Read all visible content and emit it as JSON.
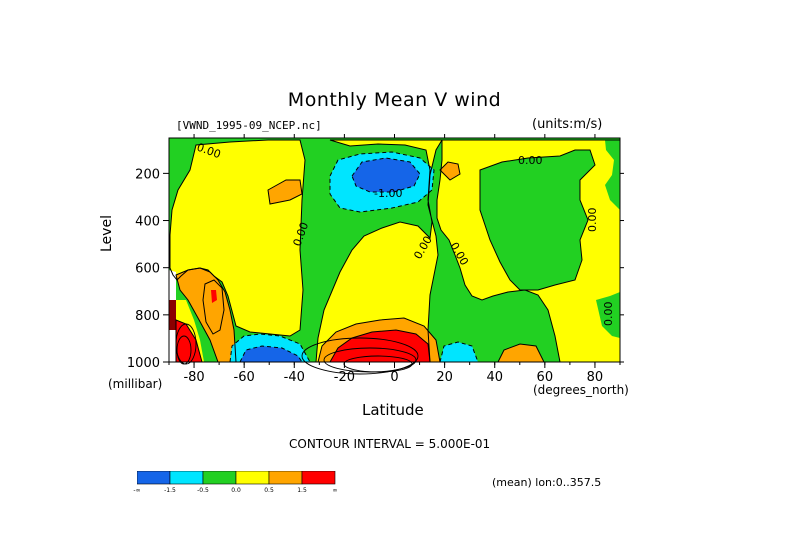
{
  "figure": {
    "title": "Monthly Mean V wind",
    "file_label": "[VWND_1995-09_NCEP.nc]",
    "units_label": "(units:m/s)",
    "y_axis_label": "Level",
    "y_axis_unit": "(millibar)",
    "x_axis_label": "Latitude",
    "x_axis_unit": "(degrees_north)",
    "contour_interval": "CONTOUR INTERVAL = 5.000E-01",
    "mean_label": "(mean) lon:0..357.5"
  },
  "chart_data": {
    "type": "contour",
    "title": "Monthly Mean V wind",
    "xlabel": "Latitude",
    "ylabel": "Level",
    "xlim": [
      -90,
      90
    ],
    "ylim": [
      1000,
      50
    ],
    "x_ticks": [
      "-80",
      "-60",
      "-40",
      "-20",
      "0",
      "20",
      "40",
      "60",
      "80"
    ],
    "y_ticks": [
      "200",
      "400",
      "600",
      "800",
      "1000"
    ],
    "contour_labels": [
      "0.00",
      "-1.00",
      "0.00",
      "0.00",
      "0.00",
      "0.00",
      "0.00",
      "0.00"
    ],
    "colorbar": {
      "colors": [
        "#1565e8",
        "#00e5ff",
        "#22d022",
        "#ffff00",
        "#ffa500",
        "#ff0000"
      ],
      "labels": [
        "-∞",
        "-1.5",
        "-0.5",
        "0.0",
        "0.5",
        "1.5",
        "∞"
      ]
    },
    "regions": [
      {
        "sign": "negative",
        "level": -1.5,
        "lat": [
          -20,
          0
        ],
        "lev": [
          150,
          250
        ]
      },
      {
        "sign": "negative",
        "level": -1.5,
        "lat": [
          -63,
          -48
        ],
        "lev": [
          930,
          1000
        ]
      },
      {
        "sign": "positive",
        "level": 1.5,
        "lat": [
          -20,
          12
        ],
        "lev": [
          880,
          1000
        ]
      },
      {
        "sign": "positive",
        "level": 1.5,
        "lat": [
          -86,
          -80
        ],
        "lev": [
          760,
          1000
        ]
      },
      {
        "sign": "positive",
        "level": 0.5,
        "lat": [
          42,
          56
        ],
        "lev": [
          920,
          1000
        ]
      },
      {
        "sign": "positive",
        "level": 0.5,
        "lat": [
          -60,
          -52
        ],
        "lev": [
          150,
          300
        ]
      }
    ]
  }
}
